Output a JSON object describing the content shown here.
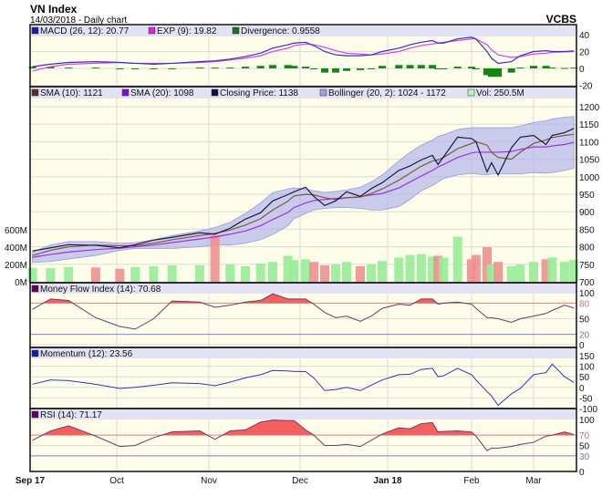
{
  "header": {
    "title": "VN Index",
    "subtitle": "14/03/2018 - Daily chart",
    "brand": "VCBS"
  },
  "chart_data": {
    "type": "line",
    "x_ticks": [
      {
        "label": "Sep 17",
        "date": "2017-09-04",
        "bold": true
      },
      {
        "label": "Oct",
        "date": "2017-10-02"
      },
      {
        "label": "Nov",
        "date": "2017-11-01"
      },
      {
        "label": "Dec",
        "date": "2017-12-01"
      },
      {
        "label": "Jan 18",
        "date": "2018-01-02",
        "bold": true
      },
      {
        "label": "Feb",
        "date": "2018-02-01"
      },
      {
        "label": "Mar",
        "date": "2018-03-01"
      }
    ],
    "dates": [
      "2017-09-04",
      "2017-09-10",
      "2017-09-16",
      "2017-09-25",
      "2017-10-03",
      "2017-10-08",
      "2017-10-14",
      "2017-10-20",
      "2017-10-29",
      "2017-11-03",
      "2017-11-08",
      "2017-11-13",
      "2017-11-18",
      "2017-11-22",
      "2017-11-27",
      "2017-11-29",
      "2017-12-03",
      "2017-12-06",
      "2017-12-10",
      "2017-12-14",
      "2017-12-18",
      "2017-12-23",
      "2017-12-27",
      "2017-12-31",
      "2018-01-06",
      "2018-01-10",
      "2018-01-14",
      "2018-01-18",
      "2018-01-20",
      "2018-01-22",
      "2018-01-27",
      "2018-02-01",
      "2018-02-03",
      "2018-02-08",
      "2018-02-10",
      "2018-02-13",
      "2018-02-19",
      "2018-02-23",
      "2018-03-01",
      "2018-03-05",
      "2018-03-07",
      "2018-03-11",
      "2018-03-14"
    ],
    "macd_panel": {
      "legend": {
        "macd": "MACD (26, 12): 20.77",
        "exp": "EXP (9): 19.82",
        "divergence": "Divergence: 0.9558"
      },
      "y_ticks": [
        "40",
        "20",
        "0",
        "-20"
      ],
      "y_tick_values": [
        40,
        20,
        0,
        -20
      ],
      "macd": [
        2,
        5,
        7,
        8,
        7,
        6,
        5,
        6,
        8,
        9,
        11,
        14,
        18,
        24,
        28,
        30,
        31,
        27,
        20,
        16,
        15,
        15,
        16,
        20,
        24,
        28,
        31,
        33,
        30,
        30,
        35,
        37,
        35,
        20,
        12,
        6,
        8,
        15,
        20,
        21,
        20,
        20,
        20.77
      ],
      "exp": [
        -3,
        2,
        5,
        6,
        7,
        6,
        6,
        6,
        7,
        8,
        10,
        12,
        15,
        20,
        24,
        27,
        29,
        28,
        25,
        21,
        18,
        17,
        16,
        17,
        20,
        24,
        27,
        29,
        30,
        31,
        33,
        35,
        35,
        28,
        22,
        16,
        13,
        14,
        17,
        18,
        19,
        19.5,
        19.82
      ],
      "divergence": [
        2,
        2,
        1,
        1,
        0,
        0,
        -0.5,
        0,
        1,
        1,
        1,
        2,
        3,
        4,
        4,
        3,
        2,
        -1,
        -5,
        -5,
        -3,
        -2,
        0,
        3,
        4,
        4,
        4,
        4,
        0,
        -1,
        2,
        2,
        0,
        -8,
        -10,
        -10,
        -5,
        1,
        3,
        3,
        1,
        0.5,
        0.9558
      ]
    },
    "price_panel": {
      "legend": {
        "sma10": "SMA (10): 1121",
        "sma20": "SMA (20): 1098",
        "close": "Closing Price: 1138",
        "bollinger": "Bollinger (20, 2): 1024 - 1172",
        "volume": "Vol: 250.5M"
      },
      "y_ticks": [
        "1200",
        "1150",
        "1100",
        "1050",
        "1000",
        "950",
        "900",
        "850",
        "800",
        "750",
        "700"
      ],
      "y_tick_values": [
        1200,
        1150,
        1100,
        1050,
        1000,
        950,
        900,
        850,
        800,
        750,
        700
      ],
      "vol_ticks": [
        "600M",
        "400M",
        "200M",
        "0M"
      ],
      "vol_tick_values": [
        600,
        400,
        200,
        0
      ],
      "close": [
        788,
        797,
        806,
        804,
        797,
        806,
        819,
        827,
        840,
        836,
        853,
        879,
        897,
        931,
        949,
        957,
        970,
        944,
        918,
        931,
        957,
        944,
        966,
        983,
        1018,
        1031,
        1048,
        1061,
        1035,
        1057,
        1113,
        1109,
        1100,
        1014,
        1040,
        1005,
        1083,
        1113,
        1118,
        1092,
        1118,
        1126,
        1138
      ],
      "sma10": [
        775,
        790,
        800,
        805,
        803,
        803,
        810,
        820,
        832,
        838,
        848,
        862,
        880,
        905,
        930,
        945,
        950,
        948,
        940,
        935,
        940,
        942,
        952,
        965,
        990,
        1010,
        1030,
        1045,
        1048,
        1055,
        1080,
        1095,
        1100,
        1090,
        1070,
        1055,
        1050,
        1070,
        1095,
        1105,
        1112,
        1118,
        1121
      ],
      "sma20": [
        770,
        778,
        785,
        792,
        796,
        800,
        805,
        812,
        822,
        828,
        836,
        845,
        860,
        878,
        898,
        912,
        925,
        932,
        935,
        938,
        940,
        943,
        948,
        952,
        968,
        985,
        1002,
        1018,
        1028,
        1035,
        1055,
        1068,
        1070,
        1070,
        1070,
        1070,
        1072,
        1078,
        1085,
        1085,
        1088,
        1092,
        1098
      ],
      "bollinger_upper": [
        785,
        805,
        815,
        815,
        810,
        812,
        820,
        832,
        845,
        855,
        870,
        895,
        925,
        955,
        965,
        968,
        965,
        960,
        955,
        958,
        962,
        970,
        985,
        1005,
        1045,
        1070,
        1090,
        1105,
        1115,
        1120,
        1135,
        1140,
        1140,
        1140,
        1140,
        1140,
        1140,
        1145,
        1155,
        1160,
        1165,
        1170,
        1172
      ],
      "bollinger_lower": [
        755,
        758,
        765,
        775,
        790,
        795,
        795,
        795,
        800,
        805,
        805,
        810,
        820,
        835,
        860,
        880,
        895,
        905,
        910,
        912,
        912,
        910,
        905,
        905,
        915,
        935,
        960,
        975,
        985,
        995,
        1005,
        1010,
        1008,
        1005,
        1008,
        1008,
        1008,
        1008,
        1012,
        1010,
        1012,
        1018,
        1024
      ],
      "volume_millions": [
        160,
        160,
        170,
        165,
        150,
        170,
        180,
        190,
        190,
        540,
        200,
        180,
        210,
        230,
        300,
        250,
        260,
        230,
        190,
        200,
        230,
        180,
        200,
        240,
        280,
        310,
        320,
        290,
        300,
        280,
        520,
        260,
        310,
        400,
        200,
        230,
        180,
        200,
        230,
        260,
        280,
        230,
        250.5
      ]
    },
    "mfi_panel": {
      "legend": "Money Flow Index (14): 70.68",
      "y_ticks": [
        "100",
        "80",
        "50",
        "20",
        "0"
      ],
      "y_tick_values": [
        100,
        80,
        50,
        20,
        0
      ],
      "overbought": 80,
      "oversold": 20,
      "values": [
        68,
        88,
        85,
        52,
        35,
        30,
        50,
        84,
        82,
        72,
        76,
        82,
        85,
        98,
        88,
        88,
        88,
        78,
        62,
        52,
        55,
        45,
        55,
        70,
        78,
        76,
        88,
        88,
        78,
        80,
        82,
        78,
        70,
        52,
        52,
        50,
        43,
        50,
        55,
        60,
        66,
        76,
        70.68
      ]
    },
    "momentum_panel": {
      "legend": "Momentum (12): 23.56",
      "y_ticks": [
        "150",
        "100",
        "50",
        "0",
        "-50",
        "-100"
      ],
      "y_tick_values": [
        150,
        100,
        50,
        0,
        -50,
        -100
      ],
      "values": [
        15,
        35,
        32,
        15,
        -5,
        0,
        10,
        22,
        18,
        8,
        25,
        45,
        60,
        80,
        78,
        75,
        75,
        45,
        -15,
        -10,
        0,
        -15,
        10,
        35,
        60,
        62,
        85,
        90,
        50,
        55,
        90,
        60,
        35,
        -20,
        -40,
        -85,
        -30,
        -5,
        60,
        70,
        110,
        50,
        23.56
      ]
    },
    "rsi_panel": {
      "legend": "RSI (14): 71.17",
      "y_ticks": [
        "100",
        "70",
        "50",
        "30",
        "0"
      ],
      "y_tick_values": [
        100,
        70,
        50,
        30,
        0
      ],
      "overbought": 70,
      "oversold": 30,
      "values": [
        60,
        78,
        88,
        68,
        48,
        50,
        65,
        76,
        78,
        62,
        78,
        80,
        95,
        99,
        98,
        98,
        80,
        70,
        50,
        50,
        52,
        48,
        60,
        72,
        84,
        82,
        92,
        94,
        76,
        77,
        78,
        76,
        68,
        40,
        45,
        45,
        48,
        52,
        56,
        68,
        70,
        76,
        71.17
      ]
    },
    "colors": {
      "macd": "#3333bb",
      "exp": "#dd44dd",
      "divergence": "#118811",
      "sma10": "#7a5a40",
      "sma20": "#a030e0",
      "close": "#1a1a48",
      "bollinger": "#b4b4ea",
      "volume_up": "#98ec98",
      "volume_down": "#f09090",
      "mfi": "#6a3a6a",
      "momentum": "#3333bb",
      "rsi": "#6a3a6a",
      "overbought_fill": "#f26060",
      "overbought_line": "#e08080",
      "oversold_line": "#8080d0",
      "panel_bg": "#fdfdea",
      "legend_bg": "#e2e2f4",
      "grid": "#dcdcdc"
    }
  }
}
